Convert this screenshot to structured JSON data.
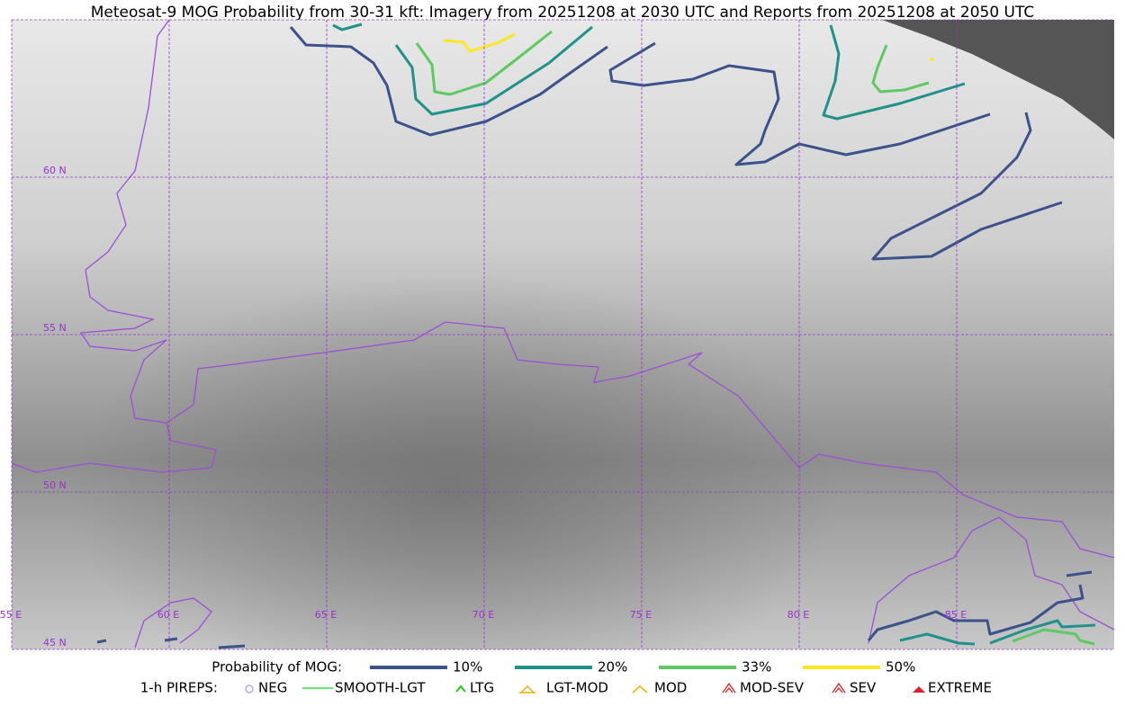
{
  "title": "Meteosat-9 MOG Probability from 30-31 kft: Imagery from 20251208 at 2030 UTC and Reports from 20251208 at 2050 UTC",
  "map": {
    "lat_labels": [
      "60 N",
      "55 N",
      "50 N",
      "45 N"
    ],
    "lon_labels": [
      "55 E",
      "60 E",
      "65 E",
      "70 E",
      "75 E",
      "80 E",
      "85 E"
    ]
  },
  "legend": {
    "probability_label": "Probability of MOG:",
    "levels": [
      {
        "label": "10%",
        "color": "#3b528b"
      },
      {
        "label": "20%",
        "color": "#21918c"
      },
      {
        "label": "33%",
        "color": "#5ec962"
      },
      {
        "label": "50%",
        "color": "#fde725"
      }
    ],
    "pireps_label": "1-h PIREPS:",
    "pireps": [
      {
        "label": "NEG",
        "color": "#aaaaff"
      },
      {
        "label": "SMOOTH-LGT",
        "color": "#33dd33"
      },
      {
        "label": "LTG",
        "color": "#22cc22"
      },
      {
        "label": "LGT-MOD",
        "color": "#f0b000"
      },
      {
        "label": "MOD",
        "color": "#f0b000"
      },
      {
        "label": "MOD-SEV",
        "color": "#e02020"
      },
      {
        "label": "SEV",
        "color": "#e02020"
      },
      {
        "label": "EXTREME",
        "color": "#e02020"
      }
    ]
  }
}
